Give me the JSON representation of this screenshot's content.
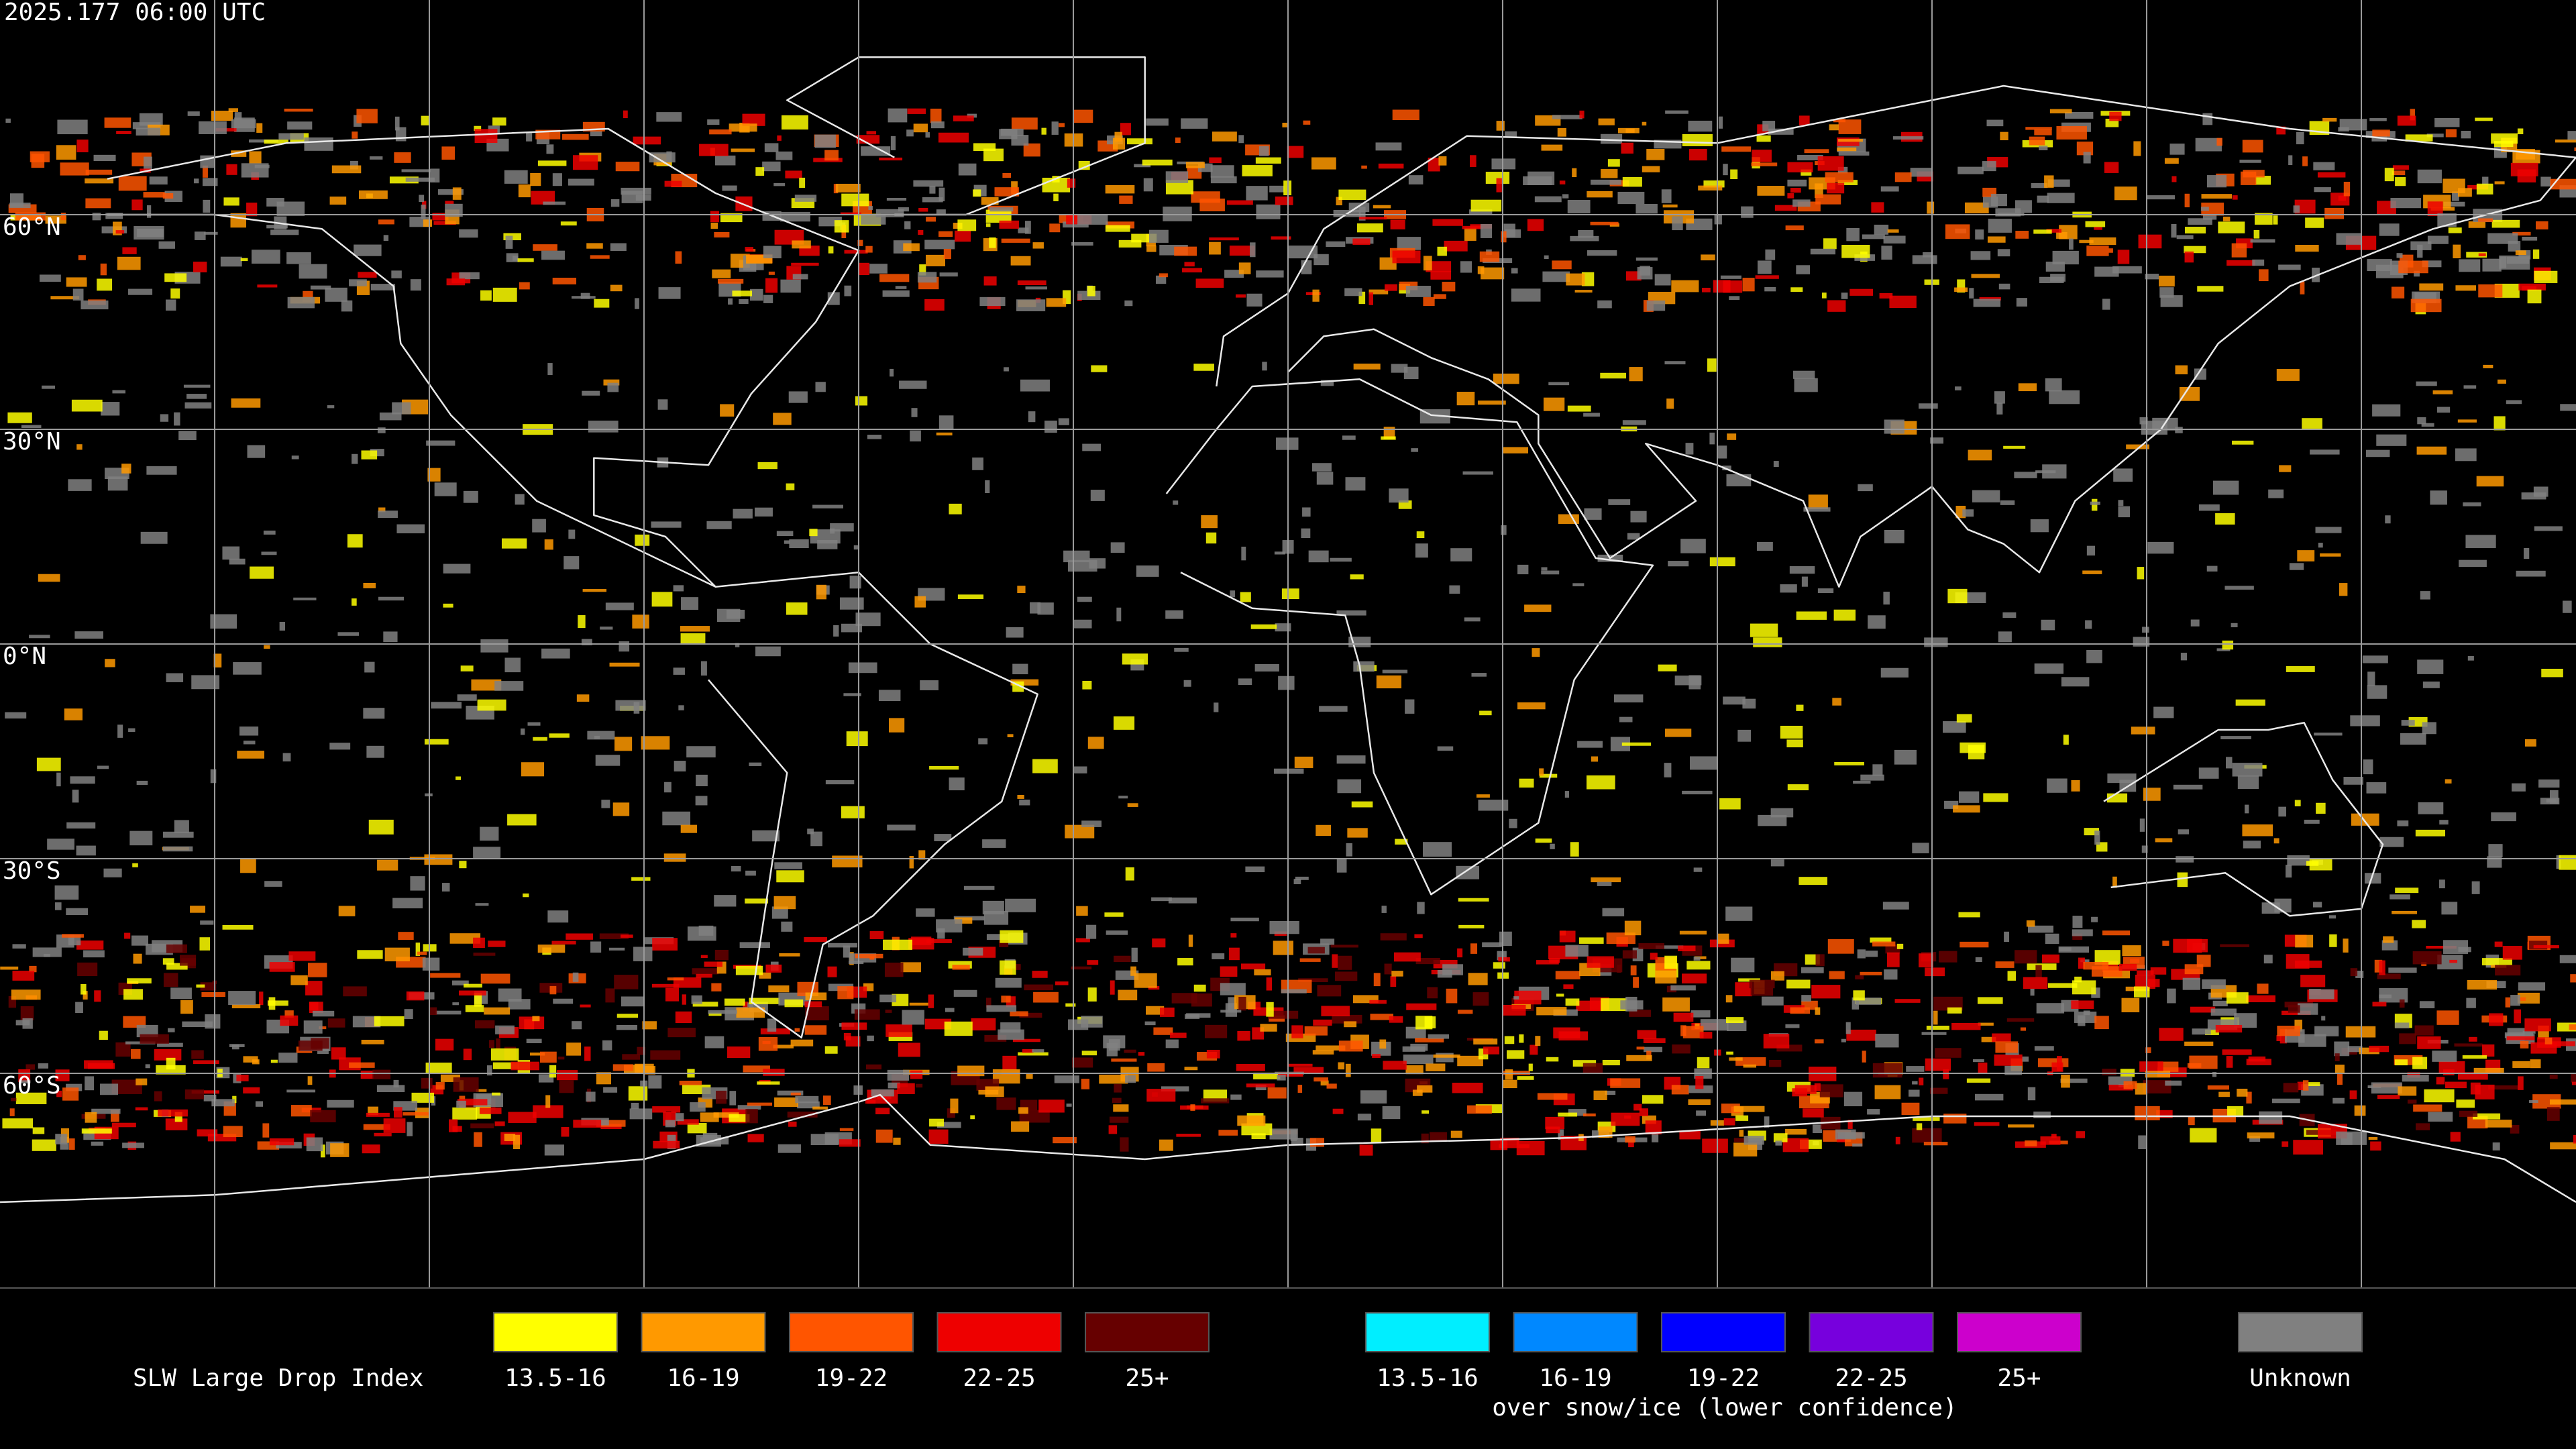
{
  "header": {
    "timestamp": "2025.177 06:00 UTC"
  },
  "map": {
    "lat_labels": [
      "60°N",
      "30°N",
      "0°N",
      "30°S",
      "60°S"
    ]
  },
  "legend": {
    "title": "SLW Large Drop Index",
    "groups": [
      {
        "items": [
          {
            "label": "13.5-16",
            "color": "#ffff00"
          },
          {
            "label": "16-19",
            "color": "#ff9900"
          },
          {
            "label": "19-22",
            "color": "#ff5500"
          },
          {
            "label": "22-25",
            "color": "#ee0000"
          },
          {
            "label": "25+",
            "color": "#660000"
          }
        ]
      },
      {
        "items": [
          {
            "label": "13.5-16",
            "color": "#00eeff"
          },
          {
            "label": "16-19",
            "color": "#0088ff"
          },
          {
            "label": "19-22",
            "color": "#0000ff"
          },
          {
            "label": "22-25",
            "color": "#7700dd"
          },
          {
            "label": "25+",
            "color": "#cc00cc"
          }
        ],
        "note": "over snow/ice (lower confidence)"
      }
    ],
    "unknown": {
      "label": "Unknown",
      "color": "#808080"
    }
  }
}
